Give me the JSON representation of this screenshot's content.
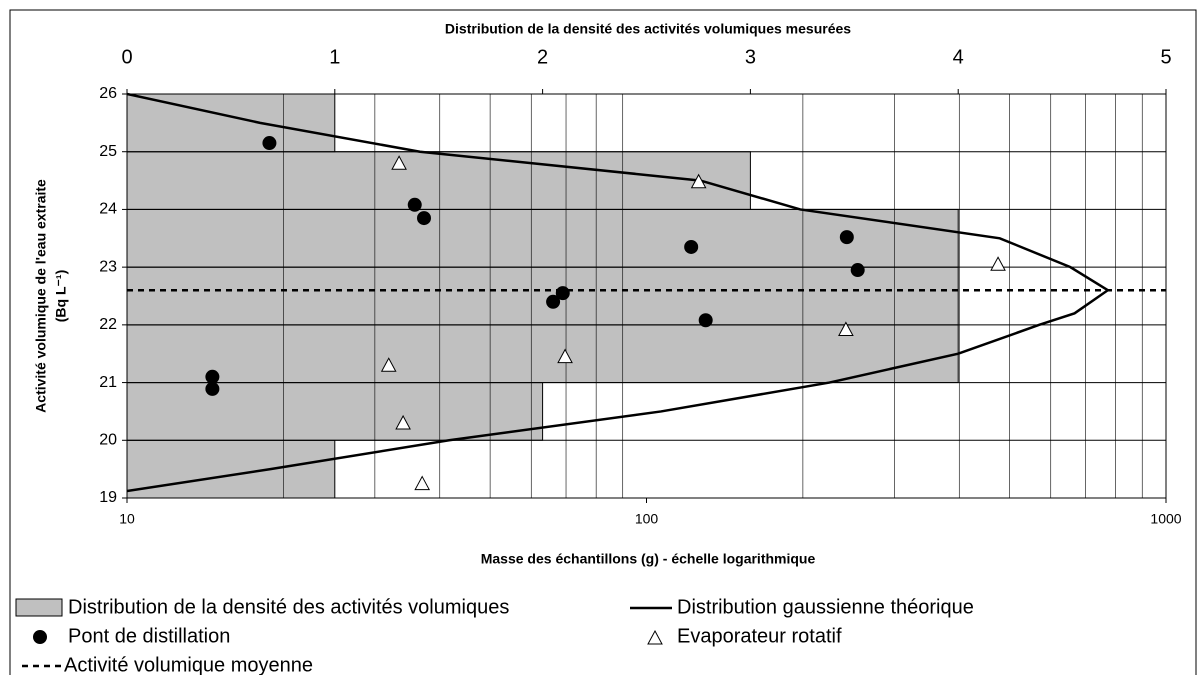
{
  "chart_data": {
    "type": "scatter",
    "title": "Distribution de la densité des activités volumiques mesurées",
    "xlabel": "Masse des échantillons (g) - échelle logarithmique",
    "ylabel": [
      "Activité volumique de l'eau extraite",
      "(Bq L⁻¹)"
    ],
    "xscale": "log",
    "xlim": [
      10,
      1000
    ],
    "xticks": [
      10,
      100,
      1000
    ],
    "xminor": [
      20,
      30,
      40,
      50,
      60,
      70,
      80,
      90,
      200,
      300,
      400,
      500,
      600,
      700,
      800,
      900
    ],
    "x2lim": [
      0,
      5
    ],
    "x2ticks": [
      0,
      1,
      2,
      3,
      4,
      5
    ],
    "ylim": [
      19,
      26
    ],
    "yticks": [
      19,
      20,
      21,
      22,
      23,
      24,
      25,
      26
    ],
    "grid": true,
    "histogram": {
      "name": "Distribution de la densité des activités volumiques",
      "color": "#c0c0c0",
      "orientation": "horizontal",
      "axis": "x2",
      "bins": [
        19,
        20,
        21,
        22,
        23,
        24,
        25,
        26
      ],
      "counts": [
        1,
        2,
        4,
        4,
        4,
        3,
        1
      ]
    },
    "curve": {
      "name": "Distribution gaussienne théorique",
      "color": "#000000",
      "axis": "x2",
      "density": [
        0,
        0.69,
        1.55,
        2.57,
        3.38,
        4.0,
        4.39,
        4.56,
        4.72,
        4.54,
        4.2,
        3.24,
        2.76,
        1.41,
        0.64,
        0
      ],
      "activity": [
        19.12,
        19.5,
        20,
        20.5,
        21,
        21.5,
        22,
        22.2,
        22.6,
        23,
        23.5,
        24,
        24.5,
        25,
        25.5,
        26
      ]
    },
    "mean": {
      "name": "Activité volumique moyenne",
      "value": 22.6,
      "style": "dashed",
      "color": "#000000"
    },
    "series": [
      {
        "name": "Pont de distillation",
        "marker": "circle",
        "color": "#000000",
        "x": [
          18.8,
          14.6,
          14.6,
          35.8,
          37.3,
          66.1,
          69.0,
          121.9,
          130,
          243,
          255
        ],
        "values": [
          25.15,
          21.1,
          20.89,
          24.08,
          23.85,
          22.4,
          22.55,
          23.35,
          22.08,
          23.52,
          22.95
        ]
      },
      {
        "name": "Evaporateur rotatif",
        "marker": "triangle",
        "color": "#ffffff",
        "x": [
          33.4,
          31.9,
          34.0,
          37.0,
          69.7,
          126,
          242,
          475
        ],
        "values": [
          24.8,
          21.3,
          20.3,
          19.25,
          21.45,
          24.48,
          21.92,
          23.05
        ]
      }
    ]
  }
}
